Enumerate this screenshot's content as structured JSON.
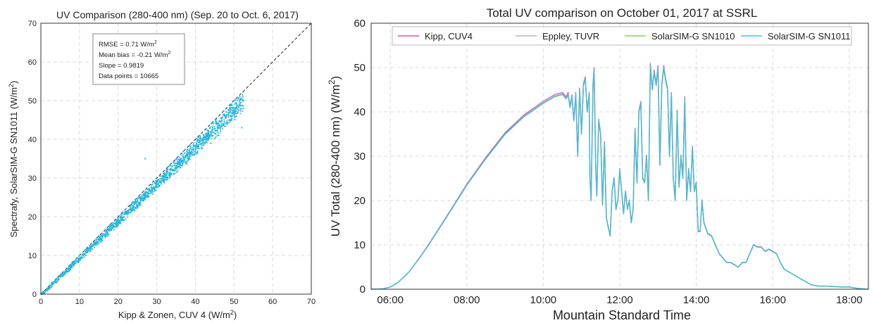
{
  "chart_data": [
    {
      "type": "scatter",
      "title": "UV Comparison (280-400 nm) (Sep. 20 to Oct. 6, 2017)",
      "xlabel": "Kipp & Zonen, CUV 4 (W/m",
      "xlabel_sup": "2",
      "xlabel_end": ")",
      "ylabel": "Spectrafy, SolarSIM-G SN1011 (W/m",
      "ylabel_sup": "2",
      "ylabel_end": ")",
      "xlim": [
        0,
        70
      ],
      "ylim": [
        0,
        70
      ],
      "xticks": [
        "0",
        "10",
        "20",
        "30",
        "40",
        "50",
        "60",
        "70"
      ],
      "yticks": [
        "0",
        "10",
        "20",
        "30",
        "40",
        "50",
        "60",
        "70"
      ],
      "grid": true,
      "reference_line": "1:1",
      "point_color": "#1fb4dc",
      "stats": {
        "rmse": "RMSE = 0.71 W/m",
        "rmse_sup": "2",
        "mean_bias": "Mean bias = -0.21 W/m",
        "mean_bias_sup": "2",
        "slope": "Slope = 0.9819",
        "points": "Data points = 10665"
      },
      "x_range": [
        0,
        53
      ],
      "slope": 0.9819
    },
    {
      "type": "line",
      "title": "Total UV comparison on October 01, 2017 at SSRL",
      "xlabel": "Mountain Standard Time",
      "ylabel": "UV Total (280-400 nm) (W/m",
      "ylabel_sup": "2",
      "ylabel_end": ")",
      "xlim": [
        5.5,
        18.5
      ],
      "ylim": [
        0,
        60
      ],
      "xticks": [
        "06:00",
        "08:00",
        "10:00",
        "12:00",
        "14:00",
        "16:00",
        "18:00"
      ],
      "xtick_values": [
        6,
        8,
        10,
        12,
        14,
        16,
        18
      ],
      "yticks": [
        "0",
        "10",
        "20",
        "30",
        "40",
        "50",
        "60"
      ],
      "grid": true,
      "legend": "top",
      "series": [
        {
          "name": "Kipp, CUV4",
          "color": "#d05a9b"
        },
        {
          "name": "Eppley, TUVR",
          "color": "#b8b8b8"
        },
        {
          "name": "SolarSIM-G SN1010",
          "color": "#8ccf6e"
        },
        {
          "name": "SolarSIM-G SN1011",
          "color": "#56b8d4"
        }
      ],
      "x": [
        5.5,
        5.8,
        6.0,
        6.2,
        6.5,
        6.8,
        7.0,
        7.3,
        7.6,
        8.0,
        8.5,
        9.0,
        9.5,
        10.0,
        10.3,
        10.5,
        10.6,
        10.65,
        10.7,
        10.75,
        10.8,
        10.85,
        10.9,
        10.95,
        11.0,
        11.05,
        11.1,
        11.15,
        11.2,
        11.22,
        11.25,
        11.3,
        11.33,
        11.37,
        11.4,
        11.45,
        11.5,
        11.55,
        11.6,
        11.65,
        11.7,
        11.75,
        11.8,
        11.85,
        11.9,
        11.95,
        12.0,
        12.05,
        12.1,
        12.15,
        12.2,
        12.25,
        12.3,
        12.35,
        12.4,
        12.45,
        12.5,
        12.55,
        12.6,
        12.65,
        12.7,
        12.75,
        12.8,
        12.85,
        12.9,
        12.95,
        13.0,
        13.05,
        13.1,
        13.15,
        13.2,
        13.25,
        13.3,
        13.35,
        13.4,
        13.45,
        13.5,
        13.55,
        13.6,
        13.65,
        13.7,
        13.75,
        13.8,
        13.85,
        13.9,
        13.95,
        14.0,
        14.05,
        14.1,
        14.15,
        14.2,
        14.3,
        14.4,
        14.5,
        14.6,
        14.7,
        14.8,
        14.9,
        15.0,
        15.1,
        15.2,
        15.3,
        15.4,
        15.5,
        15.6,
        15.7,
        15.8,
        15.9,
        16.0,
        16.1,
        16.2,
        16.3,
        16.4,
        16.5,
        16.7,
        16.9,
        17.0,
        17.2,
        17.4,
        17.6,
        17.8,
        18.0,
        18.2,
        18.5
      ],
      "values": [
        0,
        0.1,
        0.5,
        1.5,
        4,
        7.5,
        10,
        14,
        18,
        23.5,
        29.5,
        35,
        39,
        42,
        43.5,
        44,
        43,
        44,
        41,
        43.5,
        38,
        44,
        30,
        45,
        35,
        46,
        47.5,
        40,
        44,
        25,
        20,
        46,
        49.5,
        28,
        21,
        38,
        35,
        19,
        33,
        16,
        14,
        12,
        22,
        25,
        18,
        20,
        27,
        22,
        17,
        22,
        18,
        20,
        15,
        18,
        36,
        24,
        40,
        42,
        25,
        24,
        30,
        20,
        50.5,
        45,
        49,
        46,
        50,
        28,
        46,
        50,
        47,
        45,
        30,
        44,
        25,
        20,
        40,
        23,
        30,
        25,
        43,
        20,
        27,
        22,
        32,
        22,
        24,
        13,
        13,
        20,
        15,
        12.5,
        12,
        10,
        8,
        7,
        6,
        6,
        5.5,
        5,
        6,
        6,
        8,
        10,
        9.5,
        9.5,
        8.5,
        9,
        8.5,
        8,
        6,
        4.5,
        4,
        3.5,
        2.5,
        1.5,
        1,
        0.7,
        0.7,
        0.6,
        0.5,
        0.5,
        0.2,
        0
      ]
    }
  ]
}
